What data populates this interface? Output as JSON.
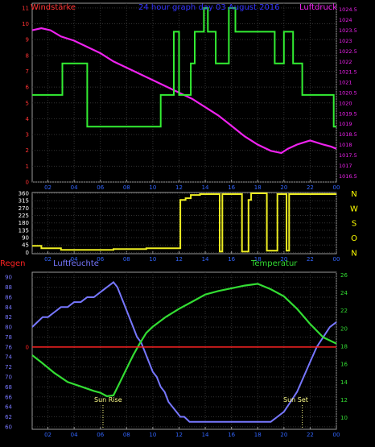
{
  "header": {
    "left": "Windstärke",
    "center": "24 hour graph day 03 August 2016",
    "right": "Luftdruck"
  },
  "panel3_labels": {
    "regen": "Regen",
    "luftfeuchte": "Luftfeuchte",
    "temperatur": "Temperatur",
    "sunrise": "Sun Rise",
    "sunset": "Sun Set"
  },
  "colors": {
    "background": "#000000",
    "frame": "#9a9a9a",
    "wind_speed": "#33ee33",
    "pressure": "#ee22ee",
    "wind_direction": "#eeee22",
    "rain": "#ff2222",
    "humidity": "#7777ff",
    "temperature": "#33dd33",
    "title": "#3333ff",
    "tick_text_left": "#ff3333",
    "tick_text_bottom": "#3366ff",
    "compass_text": "#ffff00",
    "sun_marker": "#ffff88"
  },
  "chart_data": [
    {
      "type": "line",
      "name": "wind_and_pressure",
      "x_ticks": [
        "02",
        "04",
        "06",
        "08",
        "10",
        "12",
        "14",
        "16",
        "18",
        "20",
        "22",
        "00"
      ],
      "x_range": [
        0.8,
        24
      ],
      "y_left": {
        "label": "Windstärke",
        "ticks": [
          0,
          1,
          2,
          3,
          4,
          5,
          6,
          7,
          8,
          9,
          10,
          11
        ],
        "range": [
          0,
          11.3
        ]
      },
      "y_right": {
        "label": "Luftdruck",
        "ticks": [
          1016.5,
          1017,
          1017.5,
          1018,
          1018.5,
          1019,
          1019.5,
          1020,
          1020.5,
          1021,
          1021.5,
          1022,
          1022.5,
          1023,
          1023.5,
          1024,
          1024.5
        ],
        "range": [
          1016.2,
          1024.8
        ]
      },
      "series": [
        {
          "name": "Windstärke",
          "axis": "left",
          "step": true,
          "x": [
            0.8,
            3.1,
            3.1,
            5.0,
            5.0,
            10.6,
            10.6,
            11.6,
            11.6,
            12.0,
            12.0,
            12.9,
            12.9,
            13.2,
            13.2,
            13.9,
            13.9,
            14.2,
            14.2,
            14.8,
            14.8,
            15.8,
            15.8,
            16.3,
            16.3,
            17.8,
            17.8,
            19.3,
            19.3,
            20.0,
            20.0,
            20.7,
            20.7,
            21.4,
            21.4,
            23.8,
            23.8,
            24.0
          ],
          "y": [
            5.5,
            5.5,
            7.5,
            7.5,
            3.5,
            3.5,
            5.5,
            5.5,
            9.5,
            9.5,
            5.5,
            5.5,
            7.5,
            7.5,
            9.5,
            9.5,
            11,
            11,
            9.5,
            9.5,
            7.5,
            7.5,
            11,
            11,
            9.5,
            9.5,
            9.5,
            9.5,
            7.5,
            7.5,
            9.5,
            9.5,
            7.5,
            7.5,
            5.5,
            5.5,
            3.5,
            3.5
          ]
        },
        {
          "name": "Luftdruck",
          "axis": "right",
          "x": [
            0.8,
            1.5,
            2.2,
            3.0,
            4.0,
            5.0,
            6.0,
            7.0,
            8.0,
            9.0,
            10.0,
            11.0,
            12.0,
            13.0,
            14.0,
            15.0,
            16.0,
            17.0,
            18.0,
            19.0,
            19.8,
            20.3,
            21.0,
            22.0,
            23.0,
            23.6,
            24.0
          ],
          "y": [
            1023.5,
            1023.6,
            1023.5,
            1023.2,
            1023.0,
            1022.7,
            1022.4,
            1022.0,
            1021.7,
            1021.4,
            1021.1,
            1020.8,
            1020.5,
            1020.2,
            1019.8,
            1019.4,
            1018.9,
            1018.4,
            1018.0,
            1017.7,
            1017.6,
            1017.8,
            1018.0,
            1018.2,
            1018.0,
            1017.9,
            1017.8
          ]
        }
      ]
    },
    {
      "type": "line",
      "name": "wind_direction",
      "x_ticks": [
        "02",
        "04",
        "06",
        "08",
        "10",
        "12",
        "14",
        "16",
        "18",
        "20",
        "22",
        "00"
      ],
      "x_range": [
        0.8,
        24
      ],
      "y_left": {
        "ticks": [
          0,
          45,
          90,
          135,
          180,
          225,
          270,
          315,
          360
        ],
        "range": [
          -8,
          365
        ]
      },
      "y_right": {
        "ticks": [
          "N",
          "W",
          "S",
          "O",
          "N"
        ],
        "tick_values": [
          360,
          270,
          180,
          90,
          0
        ]
      },
      "series": [
        {
          "name": "Windrichtung",
          "step": true,
          "x": [
            0.8,
            1.5,
            1.5,
            3.0,
            3.0,
            7.0,
            7.0,
            9.5,
            9.5,
            12.1,
            12.1,
            12.5,
            12.5,
            12.9,
            12.9,
            13.6,
            13.6,
            15.1,
            15.1,
            15.3,
            15.3,
            16.8,
            16.8,
            17.3,
            17.3,
            17.5,
            17.5,
            18.7,
            18.7,
            19.5,
            19.5,
            20.2,
            20.2,
            20.4,
            20.4,
            24.0
          ],
          "y": [
            40,
            40,
            25,
            25,
            15,
            15,
            20,
            20,
            25,
            25,
            320,
            320,
            330,
            330,
            350,
            350,
            355,
            355,
            5,
            5,
            355,
            355,
            5,
            5,
            320,
            320,
            360,
            360,
            10,
            10,
            355,
            355,
            10,
            10,
            355,
            355
          ]
        }
      ]
    },
    {
      "type": "line",
      "name": "humidity_temperature_rain",
      "x_ticks": [
        "02",
        "04",
        "06",
        "08",
        "10",
        "12",
        "14",
        "16",
        "18",
        "20",
        "22",
        "00"
      ],
      "x_range": [
        0.8,
        24
      ],
      "y_left": {
        "label": "Luftfeuchte",
        "ticks": [
          60,
          62,
          64,
          66,
          68,
          70,
          72,
          74,
          76,
          78,
          80,
          82,
          84,
          86,
          88,
          90
        ],
        "range": [
          59.5,
          91
        ]
      },
      "y_rain": {
        "label": "Regen",
        "ticks": [
          0
        ],
        "value_at_left": 76
      },
      "y_right": {
        "label": "Temperatur",
        "ticks": [
          10,
          12,
          14,
          16,
          18,
          20,
          22,
          24,
          26
        ],
        "range": [
          8.7,
          26.3
        ]
      },
      "series": [
        {
          "name": "Luftfeuchte",
          "axis": "left",
          "step": true,
          "x": [
            0.8,
            1.2,
            1.6,
            2.0,
            2.5,
            3.0,
            3.5,
            4.0,
            4.5,
            5.0,
            5.5,
            6.0,
            6.5,
            7.0,
            7.3,
            7.6,
            7.9,
            8.2,
            8.5,
            8.8,
            9.1,
            9.4,
            9.7,
            10.0,
            10.3,
            10.6,
            10.9,
            11.2,
            11.5,
            11.8,
            12.1,
            12.4,
            12.8,
            13.2,
            13.6,
            14.0,
            15.0,
            16.0,
            17.0,
            18.0,
            18.5,
            19.0,
            19.5,
            20.0,
            20.5,
            21.0,
            21.5,
            22.0,
            22.5,
            23.0,
            23.5,
            24.0
          ],
          "y": [
            80,
            81,
            82,
            82,
            83,
            84,
            84,
            85,
            85,
            86,
            86,
            87,
            88,
            89,
            88,
            86,
            84,
            82,
            80,
            78,
            77,
            75,
            73,
            71,
            70,
            68,
            67,
            65,
            64,
            63,
            62,
            62,
            61,
            61,
            61,
            61,
            61,
            61,
            61,
            61,
            61,
            61,
            62,
            63,
            65,
            67,
            70,
            73,
            76,
            78,
            80,
            81
          ]
        },
        {
          "name": "Temperatur",
          "axis": "right",
          "x": [
            0.8,
            1.5,
            2.5,
            3.5,
            4.5,
            5.5,
            6.0,
            6.5,
            7.0,
            7.5,
            8.0,
            8.5,
            9.0,
            9.5,
            10.0,
            11.0,
            12.0,
            13.0,
            14.0,
            15.0,
            16.0,
            17.0,
            18.0,
            19.0,
            20.0,
            21.0,
            22.0,
            23.0,
            24.0
          ],
          "y": [
            17.0,
            16.2,
            15.0,
            14.0,
            13.5,
            13.0,
            12.8,
            12.4,
            12.5,
            14.0,
            15.5,
            17.0,
            18.3,
            19.5,
            20.2,
            21.3,
            22.2,
            23.0,
            23.8,
            24.2,
            24.5,
            24.8,
            25.0,
            24.4,
            23.6,
            22.2,
            20.5,
            19.0,
            18.3
          ]
        },
        {
          "name": "Regen",
          "axis": "rain",
          "x": [
            0.8,
            24.0
          ],
          "y": [
            0,
            0
          ]
        }
      ],
      "annotations": [
        {
          "text": "Sun Rise",
          "x": 6.2
        },
        {
          "text": "Sun Set",
          "x": 21.4
        }
      ]
    }
  ]
}
